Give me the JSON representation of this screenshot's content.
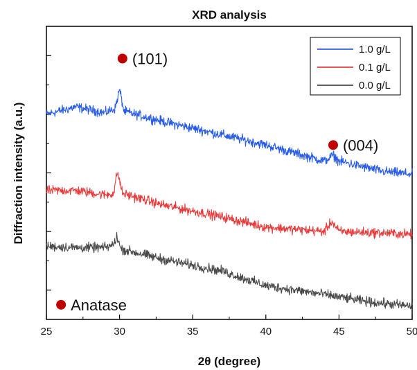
{
  "chart_data": {
    "type": "line",
    "title": "XRD analysis",
    "xlabel": "2θ (degree)",
    "ylabel": "Diffraction intensity (a.u.)",
    "xlim": [
      25,
      50
    ],
    "ylim": [
      0,
      10
    ],
    "x_ticks": [
      "25",
      "30",
      "35",
      "40",
      "45",
      "50"
    ],
    "y_tick_labels_shown": false,
    "grid": false,
    "legend_position": "top-right",
    "series": [
      {
        "name": "1.0 g/L",
        "color": "#2a5ee8",
        "points": [
          [
            25,
            7.0
          ],
          [
            27,
            7.25
          ],
          [
            29,
            7.05
          ],
          [
            29.7,
            7.2
          ],
          [
            30,
            7.85
          ],
          [
            30.3,
            7.1
          ],
          [
            33,
            6.75
          ],
          [
            37,
            6.3
          ],
          [
            40,
            5.95
          ],
          [
            44,
            5.4
          ],
          [
            44.6,
            5.6
          ],
          [
            45,
            5.4
          ],
          [
            48,
            5.05
          ],
          [
            50,
            4.95
          ]
        ]
      },
      {
        "name": "0.1 g/L",
        "color": "#e83a3a",
        "points": [
          [
            25,
            4.4
          ],
          [
            27,
            4.4
          ],
          [
            29,
            4.25
          ],
          [
            29.6,
            4.3
          ],
          [
            29.85,
            5.05
          ],
          [
            30.2,
            4.3
          ],
          [
            33,
            3.9
          ],
          [
            37,
            3.5
          ],
          [
            40,
            3.15
          ],
          [
            44,
            3.0
          ],
          [
            44.5,
            3.35
          ],
          [
            45,
            3.0
          ],
          [
            48,
            2.95
          ],
          [
            50,
            2.9
          ]
        ]
      },
      {
        "name": "0.0 g/L",
        "color": "#4a4a4a",
        "points": [
          [
            25,
            2.5
          ],
          [
            27,
            2.45
          ],
          [
            29,
            2.45
          ],
          [
            29.6,
            2.55
          ],
          [
            29.8,
            2.85
          ],
          [
            30.1,
            2.4
          ],
          [
            33,
            2.05
          ],
          [
            37,
            1.65
          ],
          [
            40,
            1.15
          ],
          [
            44,
            0.85
          ],
          [
            47,
            0.6
          ],
          [
            50,
            0.45
          ]
        ]
      }
    ],
    "annotations": [
      {
        "text": "(101)",
        "x": 30.2,
        "y": 8.9
      },
      {
        "text": "(004)",
        "x": 44.6,
        "y": 5.95
      },
      {
        "text": "Anatase",
        "x": 26.0,
        "y": 0.5
      }
    ],
    "marker_color": "#c00000"
  }
}
